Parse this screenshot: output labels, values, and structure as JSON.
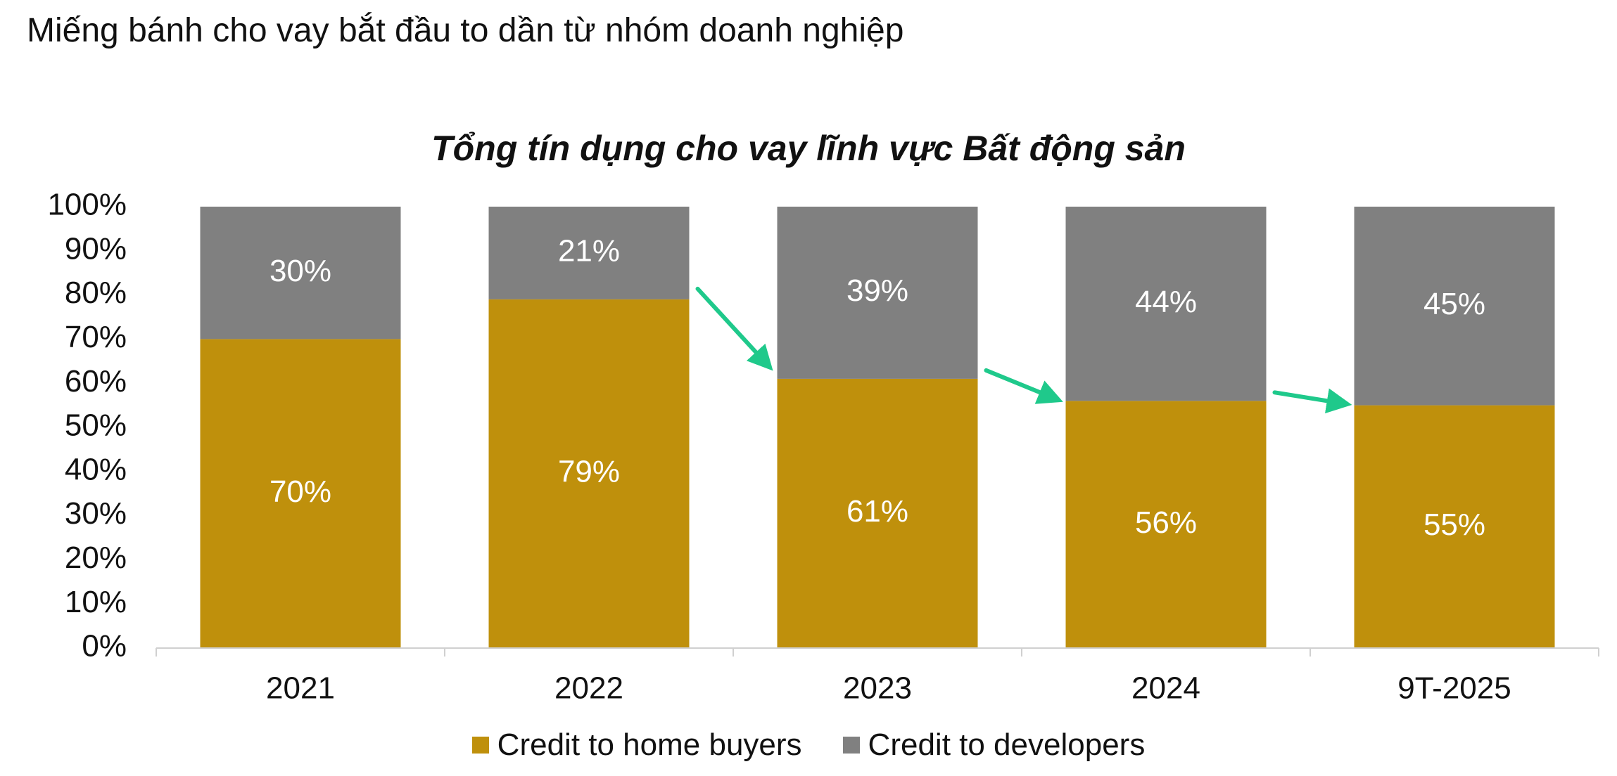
{
  "page": {
    "heading": "Miếng bánh cho vay bắt đầu to dần từ nhóm doanh nghiệp"
  },
  "chart_data": {
    "type": "bar",
    "stacked": true,
    "percent_stacked": true,
    "title": "Tổng tín dụng cho vay lĩnh vực Bất động sản",
    "xlabel": "",
    "ylabel": "",
    "categories": [
      "2021",
      "2022",
      "2023",
      "2024",
      "9T-2025"
    ],
    "series": [
      {
        "name": "Credit to home buyers",
        "values": [
          70,
          79,
          61,
          56,
          55
        ],
        "labels": [
          "70%",
          "79%",
          "61%",
          "56%",
          "55%"
        ],
        "color": "#BF900C"
      },
      {
        "name": "Credit to developers",
        "values": [
          30,
          21,
          39,
          44,
          45
        ],
        "labels": [
          "30%",
          "21%",
          "39%",
          "44%",
          "45%"
        ],
        "color": "#808080"
      }
    ],
    "ylim": [
      0,
      100
    ],
    "yticks": [
      0,
      10,
      20,
      30,
      40,
      50,
      60,
      70,
      80,
      90,
      100
    ],
    "ytick_labels": [
      "0%",
      "10%",
      "20%",
      "30%",
      "40%",
      "50%",
      "60%",
      "70%",
      "80%",
      "90%",
      "100%"
    ],
    "grid": false,
    "legend_position": "bottom",
    "data_label_color": "#FFFFFF",
    "annotations": {
      "type": "arrows",
      "color": "#1FC98B",
      "description_of_links": [
        {
          "from_category": "2022",
          "to_category": "2023"
        },
        {
          "from_category": "2023",
          "to_category": "2024"
        },
        {
          "from_category": "2024",
          "to_category": "9T-2025"
        }
      ]
    }
  }
}
